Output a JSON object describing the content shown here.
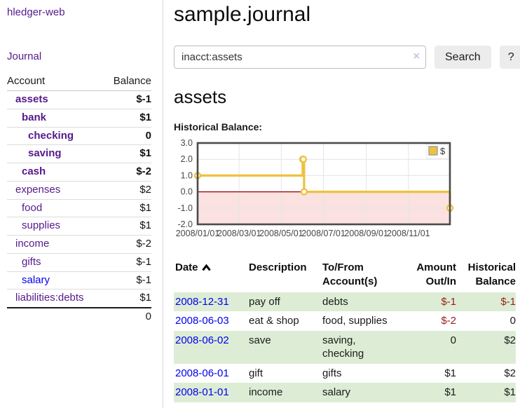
{
  "colors": {
    "link_purple": "#551a8b",
    "link_blue": "#0000ee",
    "negative_dark": "#9b1c1c",
    "negative_muted": "#c3747c",
    "row_green": "#ddedd5",
    "chart_line_gold": "#edc240",
    "chart_negative_bg": "#fce1e1",
    "chart_zero_line": "#8b0000"
  },
  "sidebar": {
    "app_title": "hledger-web",
    "nav": {
      "journal_label": "Journal"
    },
    "accounts_table": {
      "headers": {
        "account": "Account",
        "balance": "Balance"
      },
      "rows": [
        {
          "name": "assets",
          "depth": 1,
          "balance": "$-1",
          "bold": true,
          "negative": true
        },
        {
          "name": "bank",
          "depth": 2,
          "balance": "$1",
          "bold": true,
          "negative": false
        },
        {
          "name": "checking",
          "depth": 3,
          "balance": "0",
          "bold": true,
          "negative": false
        },
        {
          "name": "saving",
          "depth": 3,
          "balance": "$1",
          "bold": true,
          "negative": false
        },
        {
          "name": "cash",
          "depth": 2,
          "balance": "$-2",
          "bold": true,
          "negative": true
        },
        {
          "name": "expenses",
          "depth": 1,
          "balance": "$2",
          "bold": false,
          "negative": false
        },
        {
          "name": "food",
          "depth": 2,
          "balance": "$1",
          "bold": false,
          "negative": false
        },
        {
          "name": "supplies",
          "depth": 2,
          "balance": "$1",
          "bold": false,
          "negative": false
        },
        {
          "name": "income",
          "depth": 1,
          "balance": "$-2",
          "bold": false,
          "negative": true
        },
        {
          "name": "gifts",
          "depth": 2,
          "balance": "$-1",
          "bold": false,
          "negative": true
        },
        {
          "name": "salary",
          "depth": 2,
          "balance": "$-1",
          "bold": false,
          "negative": true,
          "link_color": "blue"
        },
        {
          "name": "liabilities:debts",
          "depth": 1,
          "balance": "$1",
          "bold": false,
          "negative": false
        }
      ],
      "total": "0"
    }
  },
  "header": {
    "title": "sample.journal"
  },
  "search": {
    "value": "inacct:assets",
    "clear_icon": "×",
    "button_label": "Search",
    "help_label": "?"
  },
  "account_page": {
    "title": "assets",
    "chart_label": "Historical Balance:"
  },
  "chart_data": {
    "type": "line",
    "title": "Historical Balance:",
    "legend_label": "$",
    "legend_position": "top-right",
    "step": true,
    "grid": true,
    "x_range": [
      "2008-01-01",
      "2008-12-31"
    ],
    "ylim": [
      -2,
      3
    ],
    "yticks": [
      3.0,
      2.0,
      1.0,
      0.0,
      -1.0,
      -2.0
    ],
    "xticks": [
      "2008/01/01",
      "2008/03/01",
      "2008/05/01",
      "2008/07/01",
      "2008/09/01",
      "2008/11/01"
    ],
    "series": [
      {
        "name": "$",
        "points": [
          {
            "date": "2008-01-01",
            "value": 1
          },
          {
            "date": "2008-06-01",
            "value": 2
          },
          {
            "date": "2008-06-02",
            "value": 2
          },
          {
            "date": "2008-06-03",
            "value": 0
          },
          {
            "date": "2008-12-31",
            "value": -1
          }
        ]
      }
    ]
  },
  "register_table": {
    "headers": [
      {
        "label": "Date",
        "sorted": "asc"
      },
      {
        "label": "Description"
      },
      {
        "label": "To/From Account(s)"
      },
      {
        "label": "Amount Out/In",
        "numeric": true
      },
      {
        "label": "Historical Balance",
        "numeric": true
      }
    ],
    "rows": [
      {
        "date": "2008-12-31",
        "description": "pay off",
        "accounts": "debts",
        "amount": "$-1",
        "balance": "$-1"
      },
      {
        "date": "2008-06-03",
        "description": "eat & shop",
        "accounts": "food, supplies",
        "amount": "$-2",
        "balance": "0"
      },
      {
        "date": "2008-06-02",
        "description": "save",
        "accounts": "saving, checking",
        "amount": "0",
        "balance": "$2"
      },
      {
        "date": "2008-06-01",
        "description": "gift",
        "accounts": "gifts",
        "amount": "$1",
        "balance": "$2"
      },
      {
        "date": "2008-01-01",
        "description": "income",
        "accounts": "salary",
        "amount": "$1",
        "balance": "$1"
      }
    ]
  }
}
